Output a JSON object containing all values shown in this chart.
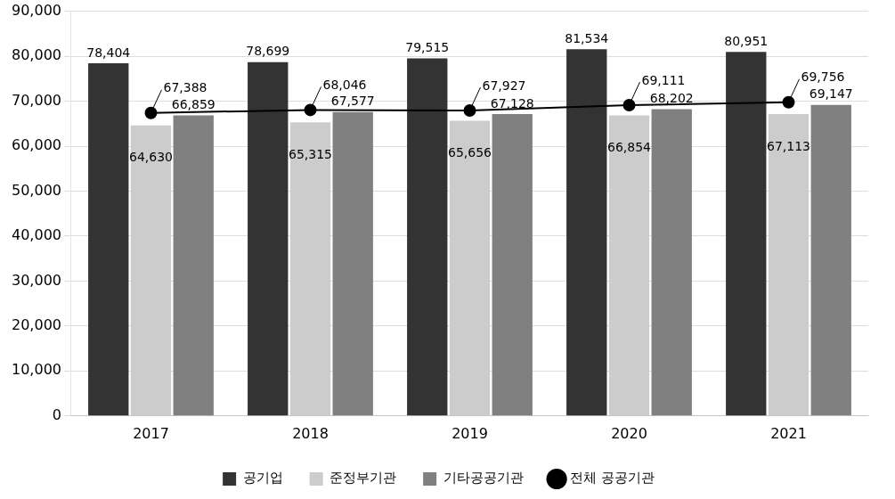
{
  "chart_data": {
    "type": "bar",
    "categories": [
      "2017",
      "2018",
      "2019",
      "2020",
      "2021"
    ],
    "series": [
      {
        "name": "공기업",
        "color": "#333333",
        "values": [
          78404,
          78699,
          79515,
          81534,
          80951
        ],
        "value_labels": [
          "78,404",
          "78,699",
          "79,515",
          "81,534",
          "80,951"
        ]
      },
      {
        "name": "준정부기관",
        "color": "#cccccc",
        "values": [
          64630,
          65315,
          65656,
          66854,
          67113
        ],
        "value_labels": [
          "64,630",
          "65,315",
          "65,656",
          "66,854",
          "67,113"
        ]
      },
      {
        "name": "기타공공기관",
        "color": "#808080",
        "values": [
          66859,
          67577,
          67128,
          68202,
          69147
        ],
        "value_labels": [
          "66,859",
          "67,577",
          "67,128",
          "68,202",
          "69,147"
        ]
      },
      {
        "name": "전체 공공기관",
        "type": "line",
        "color": "#000000",
        "values": [
          67388,
          68046,
          67927,
          69111,
          69756
        ],
        "value_labels": [
          "67,388",
          "68,046",
          "67,927",
          "69,111",
          "69,756"
        ]
      }
    ],
    "ylim": [
      0,
      90000
    ],
    "yticks": [
      {
        "value": 0,
        "label": "0"
      },
      {
        "value": 10000,
        "label": "10,000"
      },
      {
        "value": 20000,
        "label": "20,000"
      },
      {
        "value": 30000,
        "label": "30,000"
      },
      {
        "value": 40000,
        "label": "40,000"
      },
      {
        "value": 50000,
        "label": "50,000"
      },
      {
        "value": 60000,
        "label": "60,000"
      },
      {
        "value": 70000,
        "label": "70,000"
      },
      {
        "value": 80000,
        "label": "80,000"
      },
      {
        "value": 90000,
        "label": "90,000"
      }
    ],
    "grid": "y",
    "legend": "bottom",
    "marker": "circle"
  }
}
